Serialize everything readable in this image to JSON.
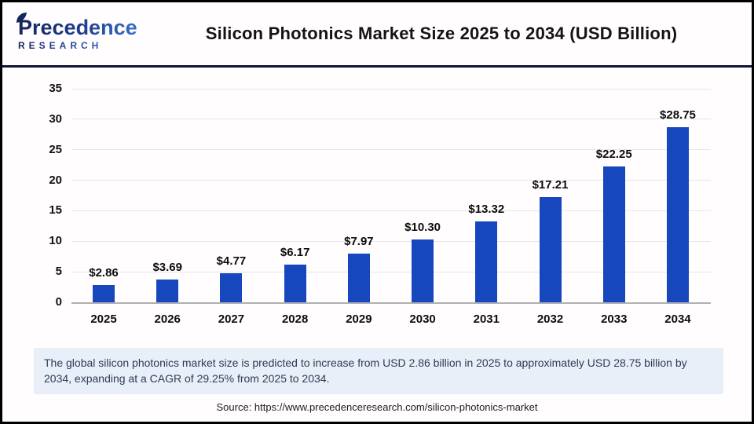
{
  "header": {
    "logo": {
      "line1": "Precedence",
      "line2": "RESEARCH"
    },
    "title": "Silicon Photonics Market Size 2025 to 2034 (USD Billion)"
  },
  "chart_data": {
    "type": "bar",
    "title": "Silicon Photonics Market Size 2025 to 2034 (USD Billion)",
    "categories": [
      "2025",
      "2026",
      "2027",
      "2028",
      "2029",
      "2030",
      "2031",
      "2032",
      "2033",
      "2034"
    ],
    "values": [
      2.86,
      3.69,
      4.77,
      6.17,
      7.97,
      10.3,
      13.32,
      17.21,
      22.25,
      28.75
    ],
    "value_labels": [
      "$2.86",
      "$3.69",
      "$4.77",
      "$6.17",
      "$7.97",
      "$10.30",
      "$13.32",
      "$17.21",
      "$22.25",
      "$28.75"
    ],
    "xlabel": "",
    "ylabel": "",
    "ylim": [
      0,
      35
    ],
    "yticks": [
      0,
      5,
      10,
      15,
      20,
      25,
      30,
      35
    ],
    "grid": true,
    "legend": "none",
    "bar_color": "#1747bc"
  },
  "note": {
    "text": "The global silicon photonics market size is predicted to increase from USD 2.86 billion in 2025 to approximately USD 28.75 billion by 2034, expanding at a CAGR of 29.25% from 2025 to 2034."
  },
  "source": {
    "text": "Source: https://www.precedenceresearch.com/silicon-photonics-market"
  },
  "colors": {
    "bar": "#1747bc",
    "header_rule": "#10133a",
    "note_background": "#e9eff9",
    "gridline": "#e7e7e7"
  }
}
